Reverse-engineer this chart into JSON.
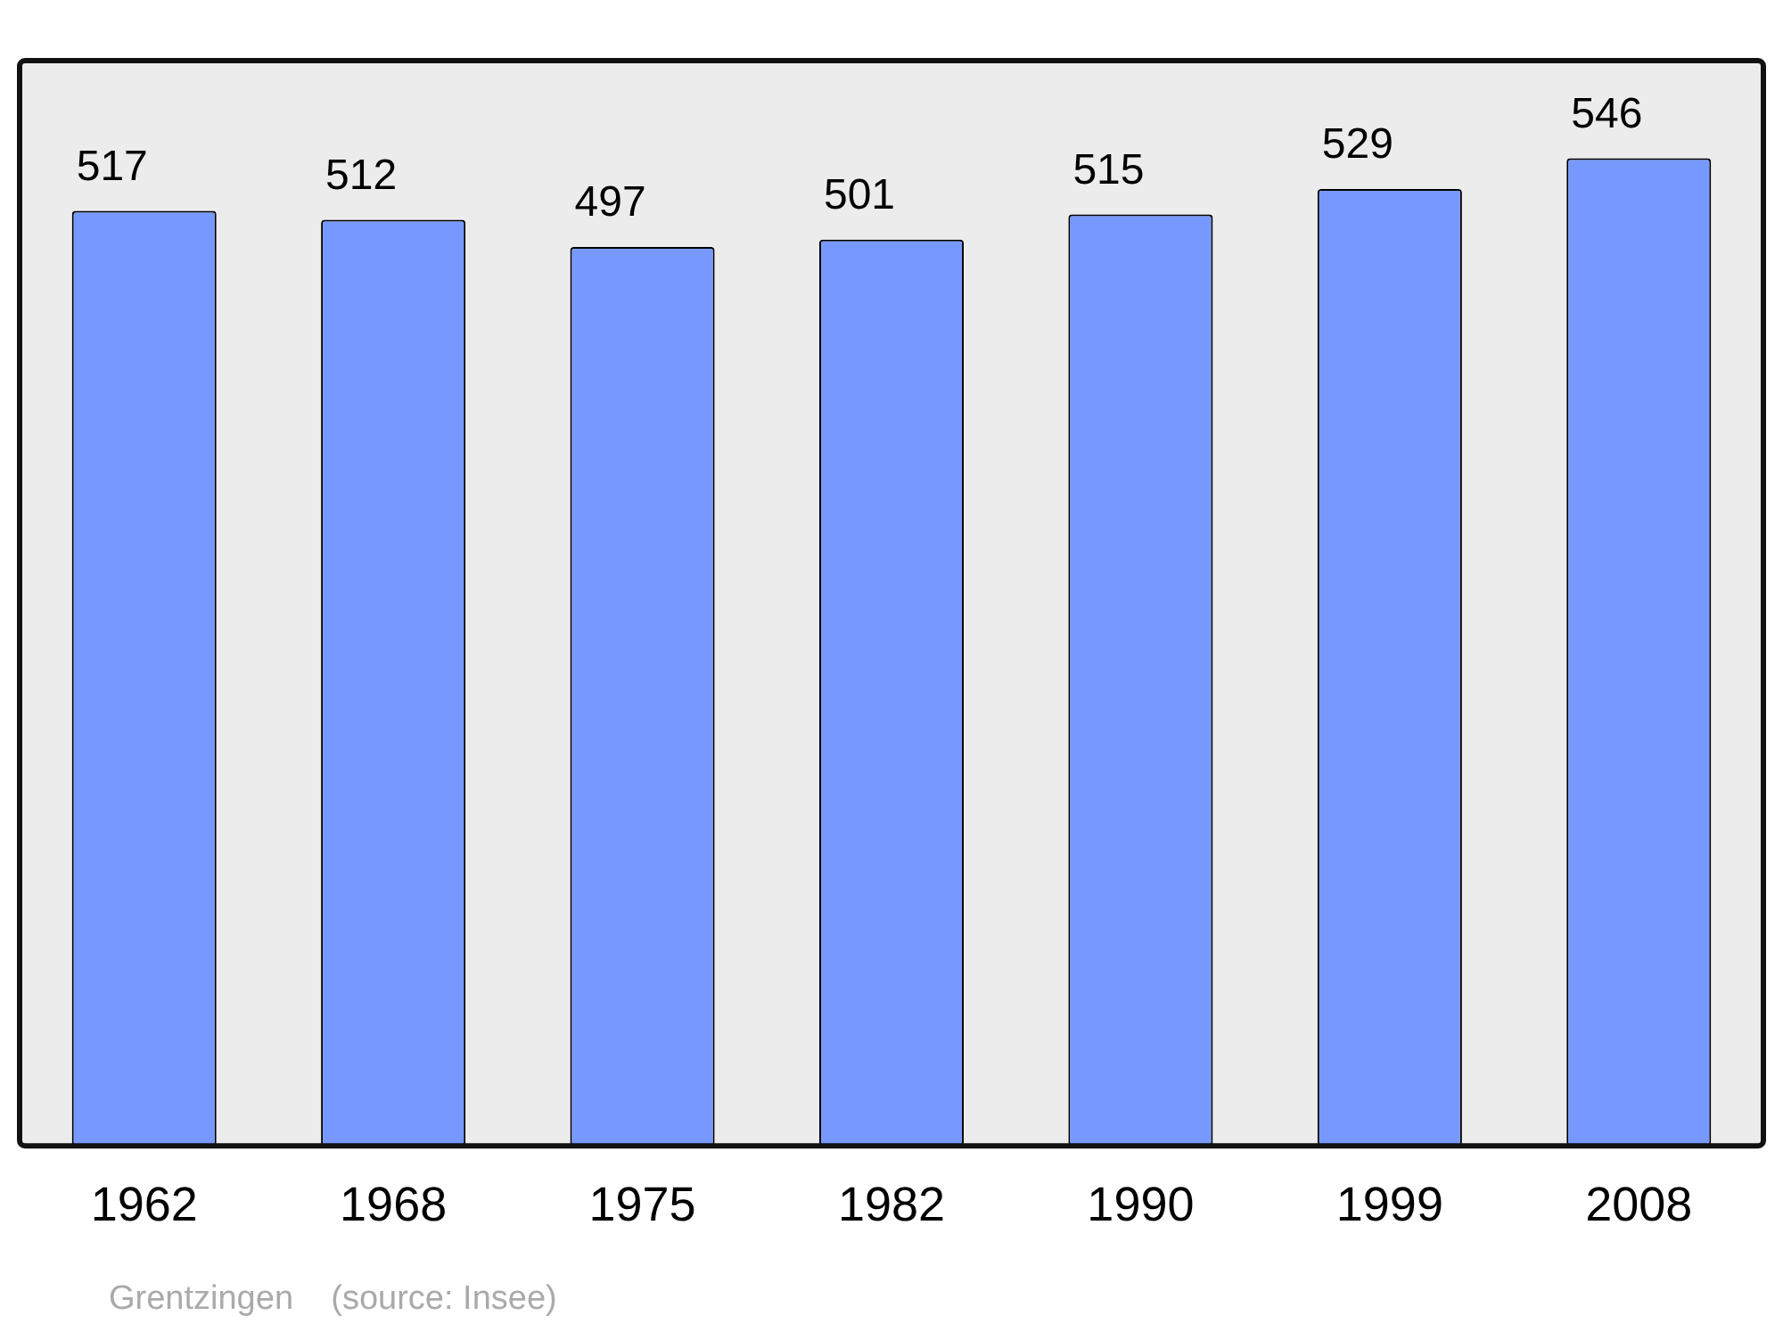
{
  "chart_data": {
    "type": "bar",
    "categories": [
      "1962",
      "1968",
      "1975",
      "1982",
      "1990",
      "1999",
      "2008"
    ],
    "values": [
      517,
      512,
      497,
      501,
      515,
      529,
      546
    ],
    "color": "#7799ff",
    "data_labels": true,
    "grid": false,
    "legend": false,
    "tick_labels": "x",
    "annotations": [
      "Grentzingen    (source: Insee)"
    ]
  }
}
